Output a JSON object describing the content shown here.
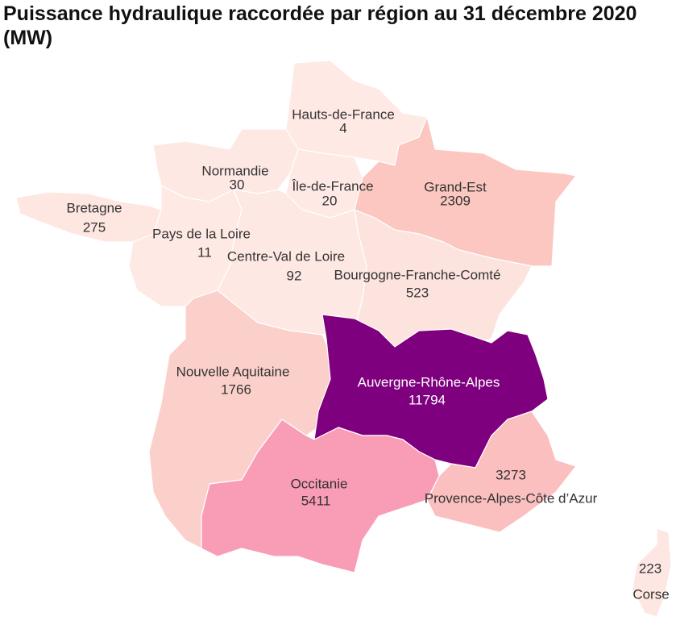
{
  "chart_data": {
    "type": "choropleth",
    "title": "Puissance hydraulique raccordée par région au 31 décembre 2020 (MW)",
    "regions": [
      {
        "name": "Hauts-de-France",
        "value": 4,
        "color": "#fee9e5"
      },
      {
        "name": "Normandie",
        "value": 30,
        "color": "#fee8e4"
      },
      {
        "name": "Île-de-France",
        "value": 20,
        "color": "#fee9e5"
      },
      {
        "name": "Grand-Est",
        "value": 2309,
        "color": "#fbc7c0"
      },
      {
        "name": "Bretagne",
        "value": 275,
        "color": "#fee6e1"
      },
      {
        "name": "Pays de la Loire",
        "value": 11,
        "color": "#fee9e5"
      },
      {
        "name": "Centre-Val de Loire",
        "value": 92,
        "color": "#fee8e4"
      },
      {
        "name": "Bourgogne-Franche-Comté",
        "value": 523,
        "color": "#fde3de"
      },
      {
        "name": "Nouvelle Aquitaine",
        "value": 1766,
        "color": "#fcd0ca"
      },
      {
        "name": "Auvergne-Rhône-Alpes",
        "value": 11794,
        "color": "#7f007e"
      },
      {
        "name": "Provence-Alpes-Côte d’Azur",
        "value": 3273,
        "color": "#fbbfbf"
      },
      {
        "name": "Occitanie",
        "value": 5411,
        "color": "#f99cb6"
      },
      {
        "name": "Corse",
        "value": 223,
        "color": "#fee7e2"
      }
    ]
  }
}
